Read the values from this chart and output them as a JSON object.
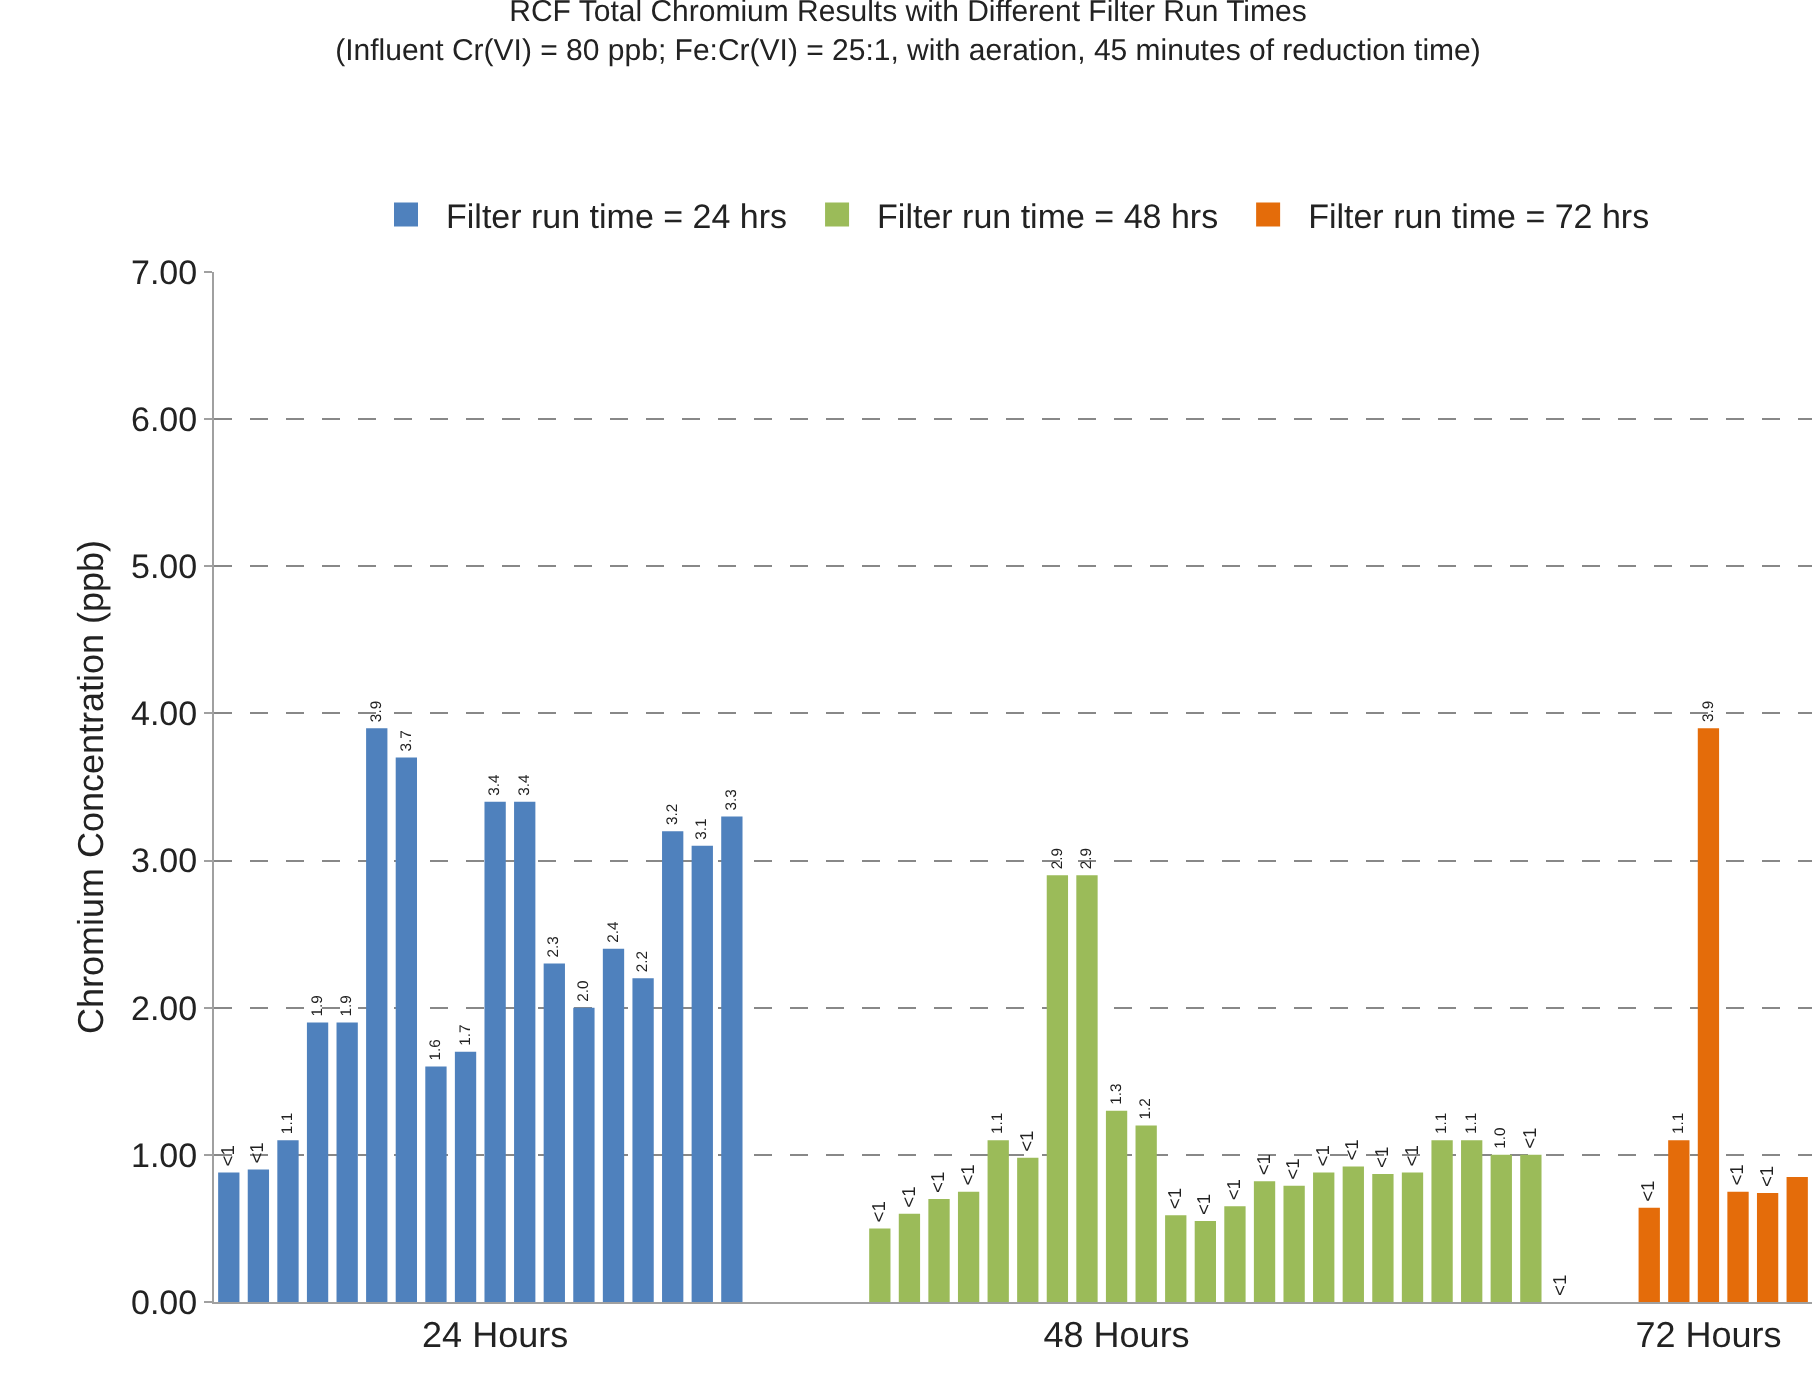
{
  "chart_data": {
    "type": "bar",
    "title": "RCF Total Chromium Results with Different Filter Run Times",
    "subtitle": "(Influent Cr(VI) = 80 ppb; Fe:Cr(VI) = 25:1, with aeration, 45 minutes of reduction time)",
    "ylabel": "Chromium Concentration (ppb)",
    "categories": [
      null,
      null,
      null,
      null,
      null,
      null,
      null,
      null,
      null,
      "24 Hours",
      null,
      null,
      null,
      null,
      null,
      null,
      null,
      null,
      null,
      null,
      null,
      null,
      null,
      null,
      null,
      null,
      null,
      null,
      null,
      null,
      "48 Hours",
      null,
      null,
      null,
      null,
      null,
      null,
      null,
      null,
      null,
      null,
      null,
      null,
      null,
      null,
      null,
      null,
      null,
      null,
      null,
      "72 Hours",
      null,
      null,
      null
    ],
    "series": [
      {
        "name": "Filter run time = 24 hrs",
        "color": "#4f81bd",
        "values": [
          0.88,
          0.9,
          1.1,
          1.9,
          1.9,
          3.9,
          3.7,
          1.6,
          1.7,
          3.4,
          3.4,
          2.3,
          2.0,
          2.4,
          2.2,
          3.2,
          3.1,
          3.3,
          null,
          null,
          null,
          null,
          null,
          null,
          null,
          null,
          null,
          null,
          null,
          null,
          null,
          null,
          null,
          null,
          null,
          null,
          null,
          null,
          null,
          null,
          null,
          null,
          null,
          null,
          null,
          null,
          null,
          null,
          null,
          null,
          null,
          null,
          null,
          null
        ],
        "value_labels": [
          "<1",
          "<1",
          "1.1",
          "1.9",
          "1.9",
          "3.9",
          "3.7",
          "1.6",
          "1.7",
          "3.4",
          "3.4",
          "2.3",
          "2.0",
          "2.4",
          "2.2",
          "3.2",
          "3.1",
          "3.3",
          null,
          null,
          null,
          null,
          null,
          null,
          null,
          null,
          null,
          null,
          null,
          null,
          null,
          null,
          null,
          null,
          null,
          null,
          null,
          null,
          null,
          null,
          null,
          null,
          null,
          null,
          null,
          null,
          null,
          null,
          null,
          null,
          null,
          null,
          null,
          null
        ]
      },
      {
        "name": "Filter run time = 48 hrs",
        "color": "#9bbb59",
        "values": [
          null,
          null,
          null,
          null,
          null,
          null,
          null,
          null,
          null,
          null,
          null,
          null,
          null,
          null,
          null,
          null,
          null,
          null,
          null,
          null,
          null,
          null,
          0.5,
          0.6,
          0.7,
          0.75,
          1.1,
          0.98,
          2.9,
          2.9,
          1.3,
          1.2,
          0.59,
          0.55,
          0.65,
          0.82,
          0.79,
          0.88,
          0.92,
          0.87,
          0.88,
          1.1,
          1.1,
          1.0,
          1.0,
          0,
          null,
          null,
          null,
          null,
          null,
          null,
          null,
          null
        ],
        "value_labels": [
          null,
          null,
          null,
          null,
          null,
          null,
          null,
          null,
          null,
          null,
          null,
          null,
          null,
          null,
          null,
          null,
          null,
          null,
          null,
          null,
          null,
          null,
          "<1",
          "<1",
          "<1",
          "<1",
          "1.1",
          "<1",
          "2.9",
          "2.9",
          "1.3",
          "1.2",
          "<1",
          "<1",
          "<1",
          "<1",
          "<1",
          "<1",
          "<1",
          "<1",
          "<1",
          "1.1",
          "1.1",
          "1.0",
          "<1",
          "<1",
          null,
          null,
          null,
          null,
          null,
          null,
          null,
          null
        ]
      },
      {
        "name": "Filter run time = 72 hrs",
        "color": "#e46c0a",
        "values": [
          null,
          null,
          null,
          null,
          null,
          null,
          null,
          null,
          null,
          null,
          null,
          null,
          null,
          null,
          null,
          null,
          null,
          null,
          null,
          null,
          null,
          null,
          null,
          null,
          null,
          null,
          null,
          null,
          null,
          null,
          null,
          null,
          null,
          null,
          null,
          null,
          null,
          null,
          null,
          null,
          null,
          null,
          null,
          null,
          null,
          null,
          null,
          null,
          0.64,
          1.1,
          3.9,
          0.75,
          0.74,
          0.85
        ],
        "value_labels": [
          null,
          null,
          null,
          null,
          null,
          null,
          null,
          null,
          null,
          null,
          null,
          null,
          null,
          null,
          null,
          null,
          null,
          null,
          null,
          null,
          null,
          null,
          null,
          null,
          null,
          null,
          null,
          null,
          null,
          null,
          null,
          null,
          null,
          null,
          null,
          null,
          null,
          null,
          null,
          null,
          null,
          null,
          null,
          null,
          null,
          null,
          null,
          null,
          "<1",
          "1.1",
          "3.9",
          "<1",
          "<1",
          null
        ]
      }
    ],
    "ylim": [
      0,
      7
    ],
    "yticks": [
      {
        "value": 0,
        "label": "0.00"
      },
      {
        "value": 1,
        "label": "1.00"
      },
      {
        "value": 2,
        "label": "2.00"
      },
      {
        "value": 3,
        "label": "3.00"
      },
      {
        "value": 4,
        "label": "4.00"
      },
      {
        "value": 5,
        "label": "5.00"
      },
      {
        "value": 6,
        "label": "6.00"
      },
      {
        "value": 7,
        "label": "7.00"
      }
    ],
    "grid": "y",
    "legend": "top"
  }
}
